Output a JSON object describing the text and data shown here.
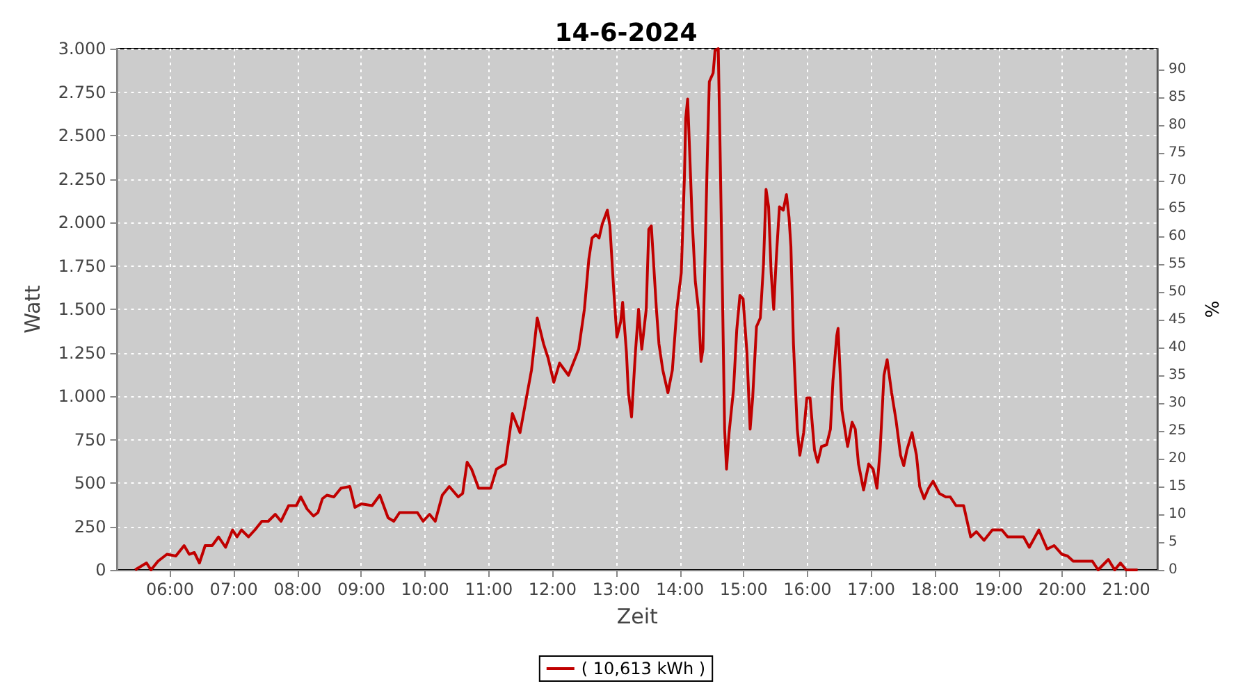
{
  "chart_data": {
    "type": "line",
    "title": "14-6-2024",
    "xlabel": "Zeit",
    "ylabel": "Watt",
    "y2label": "%",
    "xlim": [
      5.17,
      21.49
    ],
    "xticks": [
      {
        "value": 6,
        "label": "06:00"
      },
      {
        "value": 7,
        "label": "07:00"
      },
      {
        "value": 8,
        "label": "08:00"
      },
      {
        "value": 9,
        "label": "09:00"
      },
      {
        "value": 10,
        "label": "10:00"
      },
      {
        "value": 11,
        "label": "11:00"
      },
      {
        "value": 12,
        "label": "12:00"
      },
      {
        "value": 13,
        "label": "13:00"
      },
      {
        "value": 14,
        "label": "14:00"
      },
      {
        "value": 15,
        "label": "15:00"
      },
      {
        "value": 16,
        "label": "16:00"
      },
      {
        "value": 17,
        "label": "17:00"
      },
      {
        "value": 18,
        "label": "18:00"
      },
      {
        "value": 19,
        "label": "19:00"
      },
      {
        "value": 20,
        "label": "20:00"
      },
      {
        "value": 21,
        "label": "21:00"
      }
    ],
    "ylim": [
      0,
      3000
    ],
    "yticks": [
      0,
      250,
      500,
      750,
      {
        "value": 1000,
        "label": "1.000"
      },
      {
        "value": 1250,
        "label": "1.250"
      },
      {
        "value": 1500,
        "label": "1.500"
      },
      {
        "value": 1750,
        "label": "1.750"
      },
      {
        "value": 2000,
        "label": "2.000"
      },
      {
        "value": 2250,
        "label": "2.250"
      },
      {
        "value": 2500,
        "label": "2.500"
      },
      {
        "value": 2750,
        "label": "2.750"
      },
      {
        "value": 3000,
        "label": "3.000"
      }
    ],
    "y2lim": [
      0,
      93.75
    ],
    "y2ticks": [
      0,
      5,
      10,
      15,
      20,
      25,
      30,
      35,
      40,
      45,
      50,
      55,
      60,
      65,
      70,
      75,
      80,
      85,
      90
    ],
    "grid": true,
    "legend": "bottom",
    "marker": "none",
    "line_style": "solid",
    "series": [
      {
        "name": "( 10,613 kWh )",
        "color": "#c00000",
        "x": [
          5.45,
          5.63,
          5.7,
          5.81,
          5.95,
          6.09,
          6.22,
          6.3,
          6.38,
          6.46,
          6.55,
          6.66,
          6.76,
          6.87,
          6.98,
          7.05,
          7.12,
          7.23,
          7.33,
          7.44,
          7.54,
          7.65,
          7.74,
          7.86,
          7.98,
          8.05,
          8.15,
          8.25,
          8.32,
          8.39,
          8.46,
          8.57,
          8.68,
          8.82,
          8.9,
          9.0,
          9.17,
          9.29,
          9.42,
          9.51,
          9.6,
          9.88,
          9.97,
          10.07,
          10.16,
          10.27,
          10.38,
          10.52,
          10.59,
          10.66,
          10.73,
          10.84,
          11.03,
          11.12,
          11.26,
          11.37,
          11.49,
          11.58,
          11.67,
          11.76,
          11.86,
          11.93,
          12.02,
          12.11,
          12.25,
          12.41,
          12.5,
          12.57,
          12.62,
          12.68,
          12.73,
          12.78,
          12.86,
          12.9,
          12.96,
          13.01,
          13.07,
          13.1,
          13.16,
          13.19,
          13.24,
          13.3,
          13.35,
          13.4,
          13.47,
          13.51,
          13.55,
          13.63,
          13.67,
          13.73,
          13.81,
          13.88,
          13.95,
          14.02,
          14.07,
          14.09,
          14.12,
          14.15,
          14.19,
          14.24,
          14.29,
          14.33,
          14.36,
          14.39,
          14.43,
          14.46,
          14.52,
          14.55,
          14.6,
          14.63,
          14.67,
          14.7,
          14.73,
          14.77,
          14.84,
          14.89,
          14.94,
          14.99,
          15.05,
          15.1,
          15.14,
          15.2,
          15.26,
          15.31,
          15.35,
          15.39,
          15.43,
          15.47,
          15.51,
          15.56,
          15.62,
          15.67,
          15.71,
          15.74,
          15.78,
          15.84,
          15.88,
          15.94,
          15.99,
          16.04,
          16.11,
          16.16,
          16.22,
          16.3,
          16.36,
          16.4,
          16.46,
          16.48,
          16.54,
          16.63,
          16.7,
          16.75,
          16.8,
          16.88,
          16.96,
          17.03,
          17.09,
          17.14,
          17.2,
          17.25,
          17.32,
          17.39,
          17.46,
          17.51,
          17.56,
          17.64,
          17.71,
          17.76,
          17.83,
          17.9,
          17.97,
          18.07,
          18.17,
          18.24,
          18.33,
          18.45,
          18.56,
          18.65,
          18.77,
          18.9,
          19.05,
          19.14,
          19.23,
          19.39,
          19.48,
          19.63,
          19.76,
          19.87,
          19.99,
          20.08,
          20.17,
          20.29,
          20.47,
          20.56,
          20.72,
          20.82,
          20.91,
          21.0,
          21.18
        ],
        "values": [
          0,
          40,
          0,
          50,
          90,
          80,
          140,
          90,
          100,
          40,
          140,
          140,
          190,
          130,
          230,
          190,
          230,
          190,
          230,
          280,
          280,
          320,
          280,
          370,
          370,
          420,
          350,
          310,
          330,
          410,
          430,
          420,
          470,
          480,
          360,
          380,
          370,
          430,
          300,
          280,
          330,
          330,
          280,
          320,
          280,
          430,
          480,
          420,
          440,
          620,
          580,
          470,
          470,
          580,
          610,
          900,
          790,
          970,
          1150,
          1450,
          1300,
          1220,
          1080,
          1190,
          1120,
          1270,
          1500,
          1790,
          1910,
          1930,
          1910,
          1990,
          2070,
          1980,
          1610,
          1340,
          1430,
          1540,
          1250,
          1020,
          880,
          1250,
          1500,
          1270,
          1500,
          1960,
          1980,
          1500,
          1300,
          1150,
          1020,
          1150,
          1500,
          1710,
          2270,
          2600,
          2710,
          2420,
          2020,
          1660,
          1500,
          1200,
          1270,
          1760,
          2400,
          2810,
          2860,
          2990,
          3000,
          2400,
          1500,
          810,
          580,
          790,
          1040,
          1380,
          1580,
          1560,
          1250,
          810,
          990,
          1400,
          1450,
          1760,
          2190,
          2090,
          1710,
          1500,
          1790,
          2090,
          2070,
          2160,
          2030,
          1860,
          1300,
          810,
          660,
          790,
          990,
          990,
          690,
          620,
          710,
          720,
          810,
          1090,
          1350,
          1390,
          920,
          710,
          850,
          810,
          610,
          460,
          610,
          580,
          470,
          690,
          1120,
          1210,
          1020,
          860,
          660,
          600,
          690,
          790,
          660,
          480,
          410,
          470,
          510,
          440,
          420,
          420,
          370,
          370,
          190,
          220,
          170,
          230,
          230,
          190,
          190,
          190,
          130,
          230,
          120,
          140,
          90,
          80,
          50,
          50,
          50,
          0,
          60,
          0,
          40,
          0,
          0
        ]
      }
    ]
  }
}
